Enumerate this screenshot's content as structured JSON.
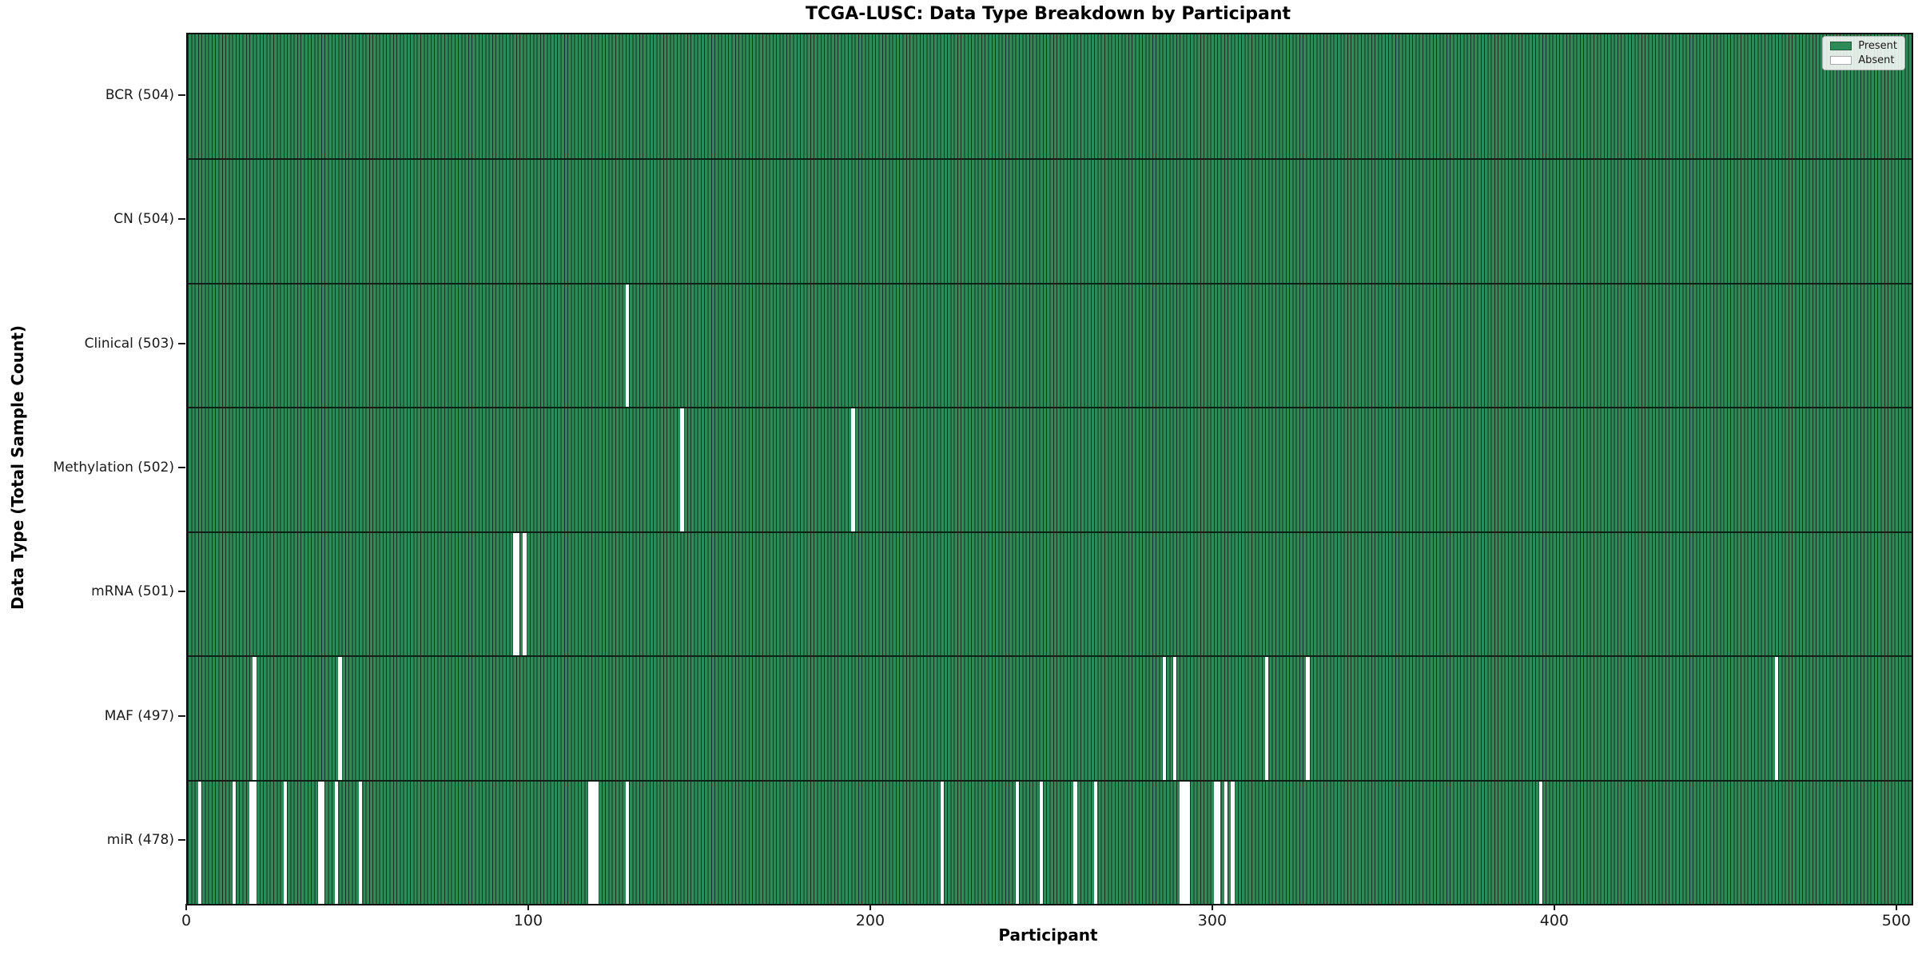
{
  "chart_data": {
    "type": "heatmap",
    "title": "TCGA-LUSC: Data Type Breakdown by Participant",
    "xlabel": "Participant",
    "ylabel": "Data Type (Total Sample Count)",
    "n_participants": 504,
    "xlim": [
      0,
      504
    ],
    "x_ticks": [
      0,
      100,
      200,
      300,
      400,
      500
    ],
    "grid": false,
    "legend_position": "upper right",
    "legend": [
      {
        "label": "Present",
        "color": "#2e8b57"
      },
      {
        "label": "Absent",
        "color": "#ffffff"
      }
    ],
    "colors": {
      "present": "#2e8b57",
      "absent": "#ffffff",
      "bar_edge": "#143022",
      "spine": "#0e0e0e"
    },
    "rows": [
      {
        "label": "BCR (504)",
        "data_type": "BCR",
        "present_count": 504,
        "absent_participants": []
      },
      {
        "label": "CN (504)",
        "data_type": "CN",
        "present_count": 504,
        "absent_participants": []
      },
      {
        "label": "Clinical (503)",
        "data_type": "Clinical",
        "present_count": 503,
        "absent_participants": [
          128
        ]
      },
      {
        "label": "Methylation (502)",
        "data_type": "Methylation",
        "present_count": 502,
        "absent_participants": [
          144,
          194
        ]
      },
      {
        "label": "mRNA (501)",
        "data_type": "mRNA",
        "present_count": 501,
        "absent_participants": [
          95,
          96,
          98
        ]
      },
      {
        "label": "MAF (497)",
        "data_type": "MAF",
        "present_count": 497,
        "absent_participants": [
          19,
          44,
          285,
          288,
          315,
          327,
          464
        ]
      },
      {
        "label": "miR (478)",
        "data_type": "miR",
        "present_count": 478,
        "absent_participants": [
          3,
          13,
          18,
          19,
          28,
          38,
          39,
          43,
          50,
          117,
          118,
          119,
          128,
          220,
          242,
          249,
          259,
          265,
          290,
          291,
          292,
          300,
          301,
          303,
          305,
          395
        ]
      }
    ]
  }
}
